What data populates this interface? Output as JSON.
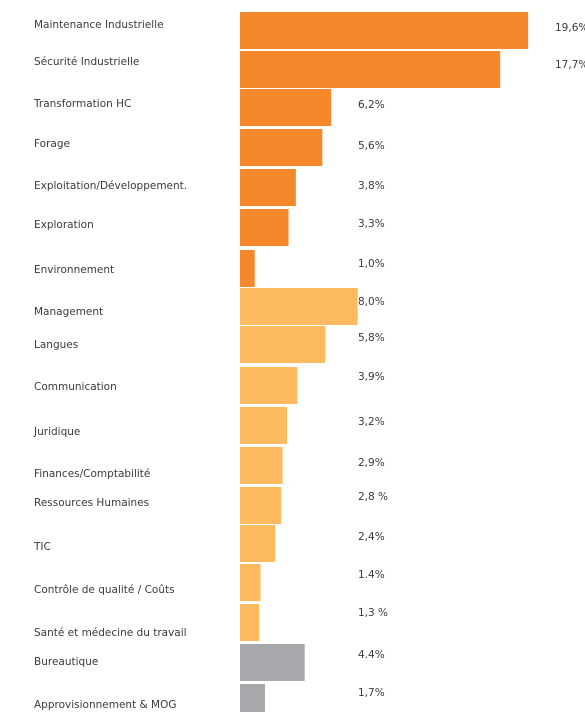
{
  "chart_data": {
    "type": "bar",
    "orientation": "horizontal",
    "categories": [
      "Maintenance Industrielle",
      "Sécurité Industrielle",
      "Transformation HC",
      "Forage",
      "Exploitation/Développement.",
      "Exploration",
      "Environnement",
      "Management",
      "Langues",
      "Communication",
      "Juridique",
      "Finances/Comptabilité",
      "Ressources Humaines",
      "TIC",
      "Contrôle de qualité / Coûts",
      "Santé et médecine du travail",
      "Bureautique",
      "Approvisionnement & MOG"
    ],
    "values": [
      19.6,
      17.7,
      6.2,
      5.6,
      3.8,
      3.3,
      1.0,
      8.0,
      5.8,
      3.9,
      3.2,
      2.9,
      2.8,
      2.4,
      1.4,
      1.3,
      4.4,
      1.7
    ],
    "value_labels": [
      "19,6%",
      "17,7%",
      "6,2%",
      "5,6%",
      "3,8%",
      "3,3%",
      "1,0%",
      "8,0%",
      "5,8%",
      "3,9%",
      "3,2%",
      "2,9%",
      "2,8 %",
      "2,4%",
      "1.4%",
      "1,3 %",
      "4.4%",
      "1,7%"
    ],
    "colors": [
      "#f5882a",
      "#f5882a",
      "#f5882a",
      "#f5882a",
      "#f5882a",
      "#f5882a",
      "#f5882a",
      "#fdba5e",
      "#fdba5e",
      "#fdba5e",
      "#fdba5e",
      "#fdba5e",
      "#fdba5e",
      "#fdba5e",
      "#fdba5e",
      "#fdba5e",
      "#a7a8ab",
      "#a7a8ab"
    ]
  }
}
